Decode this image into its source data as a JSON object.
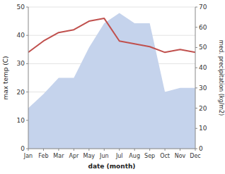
{
  "chart_data": {
    "type": "line",
    "x_label": "date (month)",
    "y_label": "max temp (C)",
    "y2_label": "med. precipitation (kg/m2)",
    "categories": [
      "Jan",
      "Feb",
      "Mar",
      "Apr",
      "May",
      "Jun",
      "Jul",
      "Aug",
      "Sep",
      "Oct",
      "Nov",
      "Dec"
    ],
    "series": [
      {
        "type": "area",
        "axis": "y2",
        "color": "#c5d3ec",
        "values": [
          20,
          27,
          35,
          35,
          50,
          62,
          67,
          62,
          62,
          28,
          30,
          30
        ]
      },
      {
        "type": "line",
        "color": "#c0504d",
        "values": [
          34,
          38,
          41,
          42,
          45,
          46,
          38,
          37,
          36,
          34,
          35,
          34
        ]
      }
    ],
    "ylim": [
      0,
      50
    ],
    "yticks": [
      0,
      10,
      20,
      30,
      40,
      50
    ],
    "y2lim": [
      0,
      70
    ],
    "y2ticks": [
      0,
      10,
      20,
      30,
      40,
      50,
      60,
      70
    ],
    "grid": true
  }
}
